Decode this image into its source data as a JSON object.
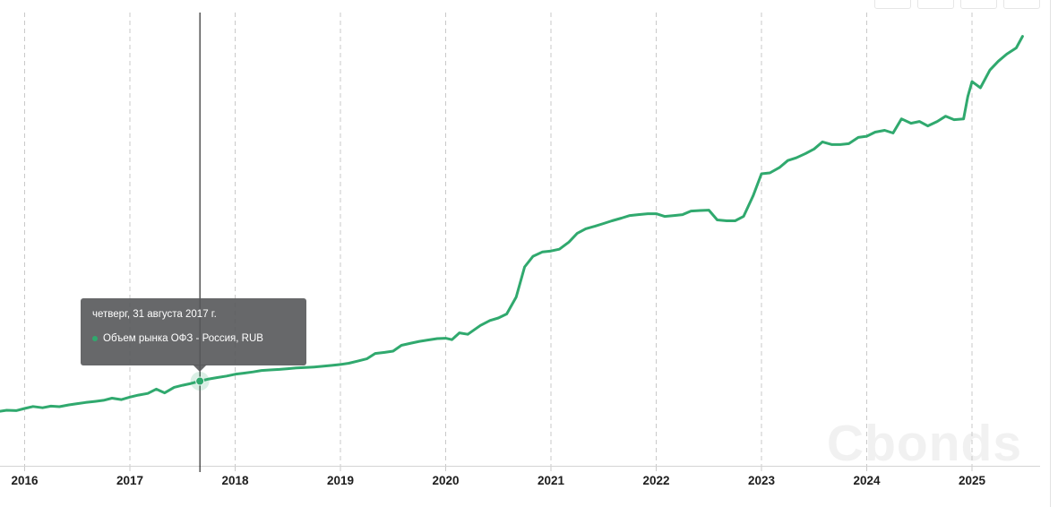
{
  "brand": {
    "watermark": "Cbonds"
  },
  "toolbar": {
    "buttons": [
      {
        "label": ""
      },
      {
        "label": ""
      },
      {
        "label": ""
      },
      {
        "label": ""
      }
    ]
  },
  "tooltip": {
    "date_line": "четверг, 31 августа 2017 г.",
    "series_line": "Объем рынка ОФЗ - Россия, RUB"
  },
  "chart_data": {
    "type": "line",
    "title": "",
    "xlabel": "",
    "ylabel": "",
    "y_axis_labels_visible": false,
    "grid": "vertical-dashed",
    "legend_position": "none (series named in tooltip only)",
    "value_unit": "RUB, estimated trillions (no y-axis labels shown)",
    "x_ticks": [
      2016,
      2017,
      2018,
      2019,
      2020,
      2021,
      2022,
      2023,
      2024,
      2025
    ],
    "x_range_years": [
      2015.75,
      2025.65
    ],
    "highlighted_point": {
      "date": "2017-08-31",
      "x": 2017.665,
      "value": 6.16
    },
    "series": [
      {
        "name": "Объем рынка ОФЗ - Россия, RUB",
        "color": "#30a96e",
        "points": [
          [
            2015.75,
            4.45
          ],
          [
            2015.83,
            4.52
          ],
          [
            2015.92,
            4.5
          ],
          [
            2016.0,
            4.62
          ],
          [
            2016.08,
            4.73
          ],
          [
            2016.17,
            4.66
          ],
          [
            2016.25,
            4.75
          ],
          [
            2016.33,
            4.72
          ],
          [
            2016.42,
            4.82
          ],
          [
            2016.5,
            4.89
          ],
          [
            2016.58,
            4.96
          ],
          [
            2016.67,
            5.02
          ],
          [
            2016.75,
            5.08
          ],
          [
            2016.83,
            5.2
          ],
          [
            2016.92,
            5.12
          ],
          [
            2017.0,
            5.26
          ],
          [
            2017.08,
            5.37
          ],
          [
            2017.17,
            5.47
          ],
          [
            2017.25,
            5.71
          ],
          [
            2017.33,
            5.5
          ],
          [
            2017.42,
            5.81
          ],
          [
            2017.5,
            5.93
          ],
          [
            2017.58,
            6.03
          ],
          [
            2017.665,
            6.16
          ],
          [
            2017.75,
            6.28
          ],
          [
            2017.83,
            6.36
          ],
          [
            2017.92,
            6.45
          ],
          [
            2018.0,
            6.55
          ],
          [
            2018.08,
            6.61
          ],
          [
            2018.17,
            6.68
          ],
          [
            2018.25,
            6.76
          ],
          [
            2018.33,
            6.79
          ],
          [
            2018.42,
            6.82
          ],
          [
            2018.5,
            6.86
          ],
          [
            2018.58,
            6.9
          ],
          [
            2018.67,
            6.93
          ],
          [
            2018.75,
            6.96
          ],
          [
            2018.83,
            7.0
          ],
          [
            2018.92,
            7.05
          ],
          [
            2019.0,
            7.1
          ],
          [
            2019.08,
            7.17
          ],
          [
            2019.17,
            7.3
          ],
          [
            2019.25,
            7.42
          ],
          [
            2019.33,
            7.72
          ],
          [
            2019.42,
            7.78
          ],
          [
            2019.5,
            7.85
          ],
          [
            2019.58,
            8.18
          ],
          [
            2019.67,
            8.3
          ],
          [
            2019.75,
            8.4
          ],
          [
            2019.83,
            8.48
          ],
          [
            2019.92,
            8.56
          ],
          [
            2020.0,
            8.58
          ],
          [
            2020.06,
            8.5
          ],
          [
            2020.13,
            8.88
          ],
          [
            2020.21,
            8.8
          ],
          [
            2020.33,
            9.3
          ],
          [
            2020.42,
            9.58
          ],
          [
            2020.5,
            9.72
          ],
          [
            2020.58,
            9.95
          ],
          [
            2020.67,
            10.9
          ],
          [
            2020.75,
            12.6
          ],
          [
            2020.83,
            13.2
          ],
          [
            2020.92,
            13.45
          ],
          [
            2021.0,
            13.5
          ],
          [
            2021.08,
            13.6
          ],
          [
            2021.17,
            14.0
          ],
          [
            2021.25,
            14.5
          ],
          [
            2021.33,
            14.75
          ],
          [
            2021.42,
            14.9
          ],
          [
            2021.5,
            15.05
          ],
          [
            2021.58,
            15.2
          ],
          [
            2021.67,
            15.35
          ],
          [
            2021.75,
            15.5
          ],
          [
            2021.83,
            15.55
          ],
          [
            2021.92,
            15.6
          ],
          [
            2022.0,
            15.6
          ],
          [
            2022.08,
            15.45
          ],
          [
            2022.17,
            15.5
          ],
          [
            2022.25,
            15.55
          ],
          [
            2022.33,
            15.75
          ],
          [
            2022.42,
            15.78
          ],
          [
            2022.5,
            15.8
          ],
          [
            2022.58,
            15.25
          ],
          [
            2022.67,
            15.2
          ],
          [
            2022.75,
            15.2
          ],
          [
            2022.83,
            15.45
          ],
          [
            2022.92,
            16.6
          ],
          [
            2023.0,
            17.85
          ],
          [
            2023.08,
            17.9
          ],
          [
            2023.17,
            18.2
          ],
          [
            2023.25,
            18.6
          ],
          [
            2023.33,
            18.75
          ],
          [
            2023.42,
            19.0
          ],
          [
            2023.5,
            19.25
          ],
          [
            2023.58,
            19.65
          ],
          [
            2023.67,
            19.5
          ],
          [
            2023.75,
            19.5
          ],
          [
            2023.83,
            19.55
          ],
          [
            2023.92,
            19.9
          ],
          [
            2024.0,
            19.97
          ],
          [
            2024.08,
            20.2
          ],
          [
            2024.17,
            20.3
          ],
          [
            2024.25,
            20.15
          ],
          [
            2024.33,
            20.95
          ],
          [
            2024.42,
            20.7
          ],
          [
            2024.5,
            20.8
          ],
          [
            2024.58,
            20.55
          ],
          [
            2024.67,
            20.8
          ],
          [
            2024.75,
            21.1
          ],
          [
            2024.83,
            20.9
          ],
          [
            2024.92,
            20.95
          ],
          [
            2024.96,
            22.2
          ],
          [
            2025.0,
            23.05
          ],
          [
            2025.08,
            22.7
          ],
          [
            2025.17,
            23.7
          ],
          [
            2025.25,
            24.2
          ],
          [
            2025.33,
            24.6
          ],
          [
            2025.42,
            24.95
          ],
          [
            2025.48,
            25.6
          ]
        ]
      }
    ]
  }
}
